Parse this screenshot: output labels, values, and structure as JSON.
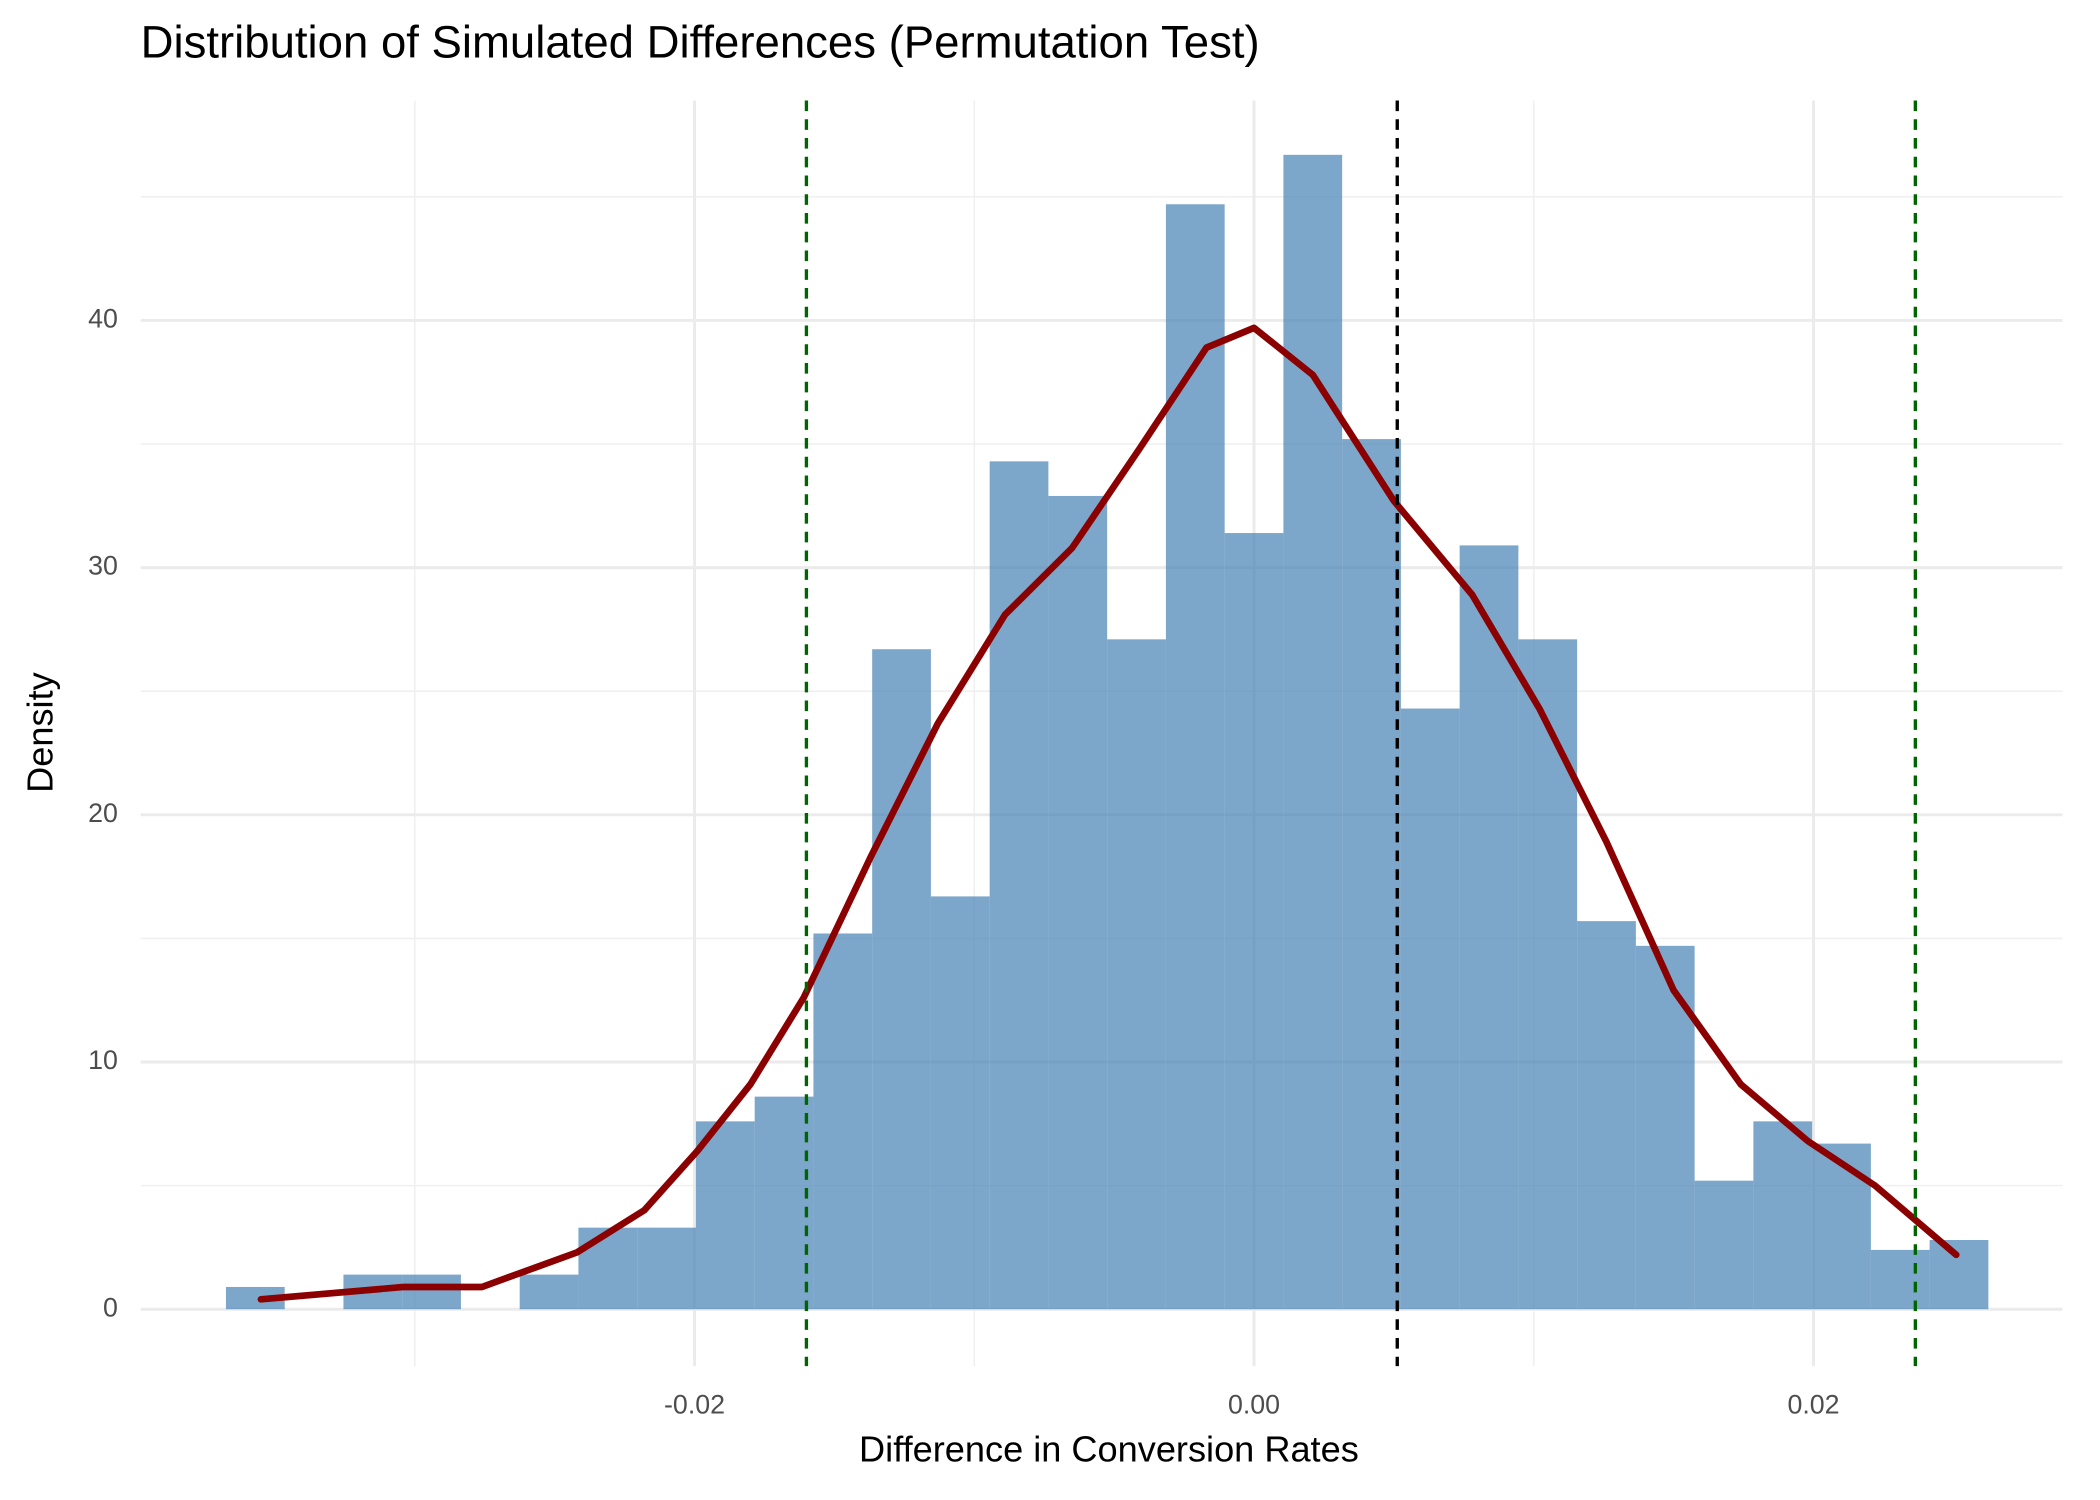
{
  "chart_data": {
    "type": "histogram",
    "title": "Distribution of Simulated Differences (Permutation Test)",
    "x_label": "Difference in Conversion Rates",
    "y_label": "Density",
    "bins": [
      -0.03675,
      -0.03465,
      -0.03255,
      -0.03045,
      -0.02835,
      -0.02625,
      -0.02415,
      -0.02205,
      -0.01995,
      -0.01785,
      -0.01575,
      -0.01365,
      -0.01155,
      -0.00945,
      -0.00735,
      -0.00525,
      -0.00315,
      -0.00105,
      0.00105,
      0.00315,
      0.00525,
      0.00735,
      0.00945,
      0.01155,
      0.01365,
      0.01575,
      0.01785,
      0.01995,
      0.02205,
      0.02415,
      0.02625
    ],
    "values": [
      0.9,
      0,
      1.4,
      1.4,
      0,
      1.4,
      3.3,
      3.3,
      7.6,
      8.6,
      15.2,
      26.7,
      16.7,
      34.3,
      32.9,
      27.1,
      44.7,
      31.4,
      46.7,
      35.2,
      24.3,
      30.9,
      27.1,
      15.7,
      14.7,
      5.2,
      7.6,
      6.7,
      2.4,
      2.8
    ],
    "color": "#4682b4",
    "opacity": 0.7,
    "density": {
      "color": "#8b0000",
      "x": [
        -0.0355,
        -0.0304,
        -0.0276,
        -0.0242,
        -0.0218,
        -0.0199,
        -0.018,
        -0.0161,
        -0.0137,
        -0.0113,
        -0.0089,
        -0.0065,
        -0.0041,
        -0.0017,
        0,
        0.0021,
        0.005,
        0.0078,
        0.0102,
        0.0126,
        0.015,
        0.0174,
        0.0198,
        0.0222,
        0.0251
      ],
      "y": [
        0.4,
        0.9,
        0.9,
        2.3,
        4.0,
        6.4,
        9.1,
        12.6,
        18.3,
        23.7,
        28.1,
        30.8,
        34.8,
        38.9,
        39.7,
        37.8,
        32.7,
        28.9,
        24.3,
        18.9,
        12.9,
        9.1,
        6.8,
        5.0,
        2.2
      ]
    },
    "vlines": [
      {
        "value": -0.016,
        "color": "#006400"
      },
      {
        "value": 0.00512,
        "color": "#000000"
      },
      {
        "value": 0.02364,
        "color": "#006400"
      }
    ],
    "xlim": [
      -0.0398,
      0.0289
    ],
    "ylim": [
      -2.3,
      48.9
    ],
    "xticks": [
      -0.02,
      {
        "value": 0,
        "label": "0.00"
      },
      0.02
    ],
    "yticks": [
      0,
      10,
      20,
      30,
      40
    ],
    "x_minor_grid": [
      -0.03,
      -0.01,
      0.01
    ],
    "y_minor_grid": [
      5,
      15,
      25,
      35,
      45
    ],
    "grid": true
  }
}
